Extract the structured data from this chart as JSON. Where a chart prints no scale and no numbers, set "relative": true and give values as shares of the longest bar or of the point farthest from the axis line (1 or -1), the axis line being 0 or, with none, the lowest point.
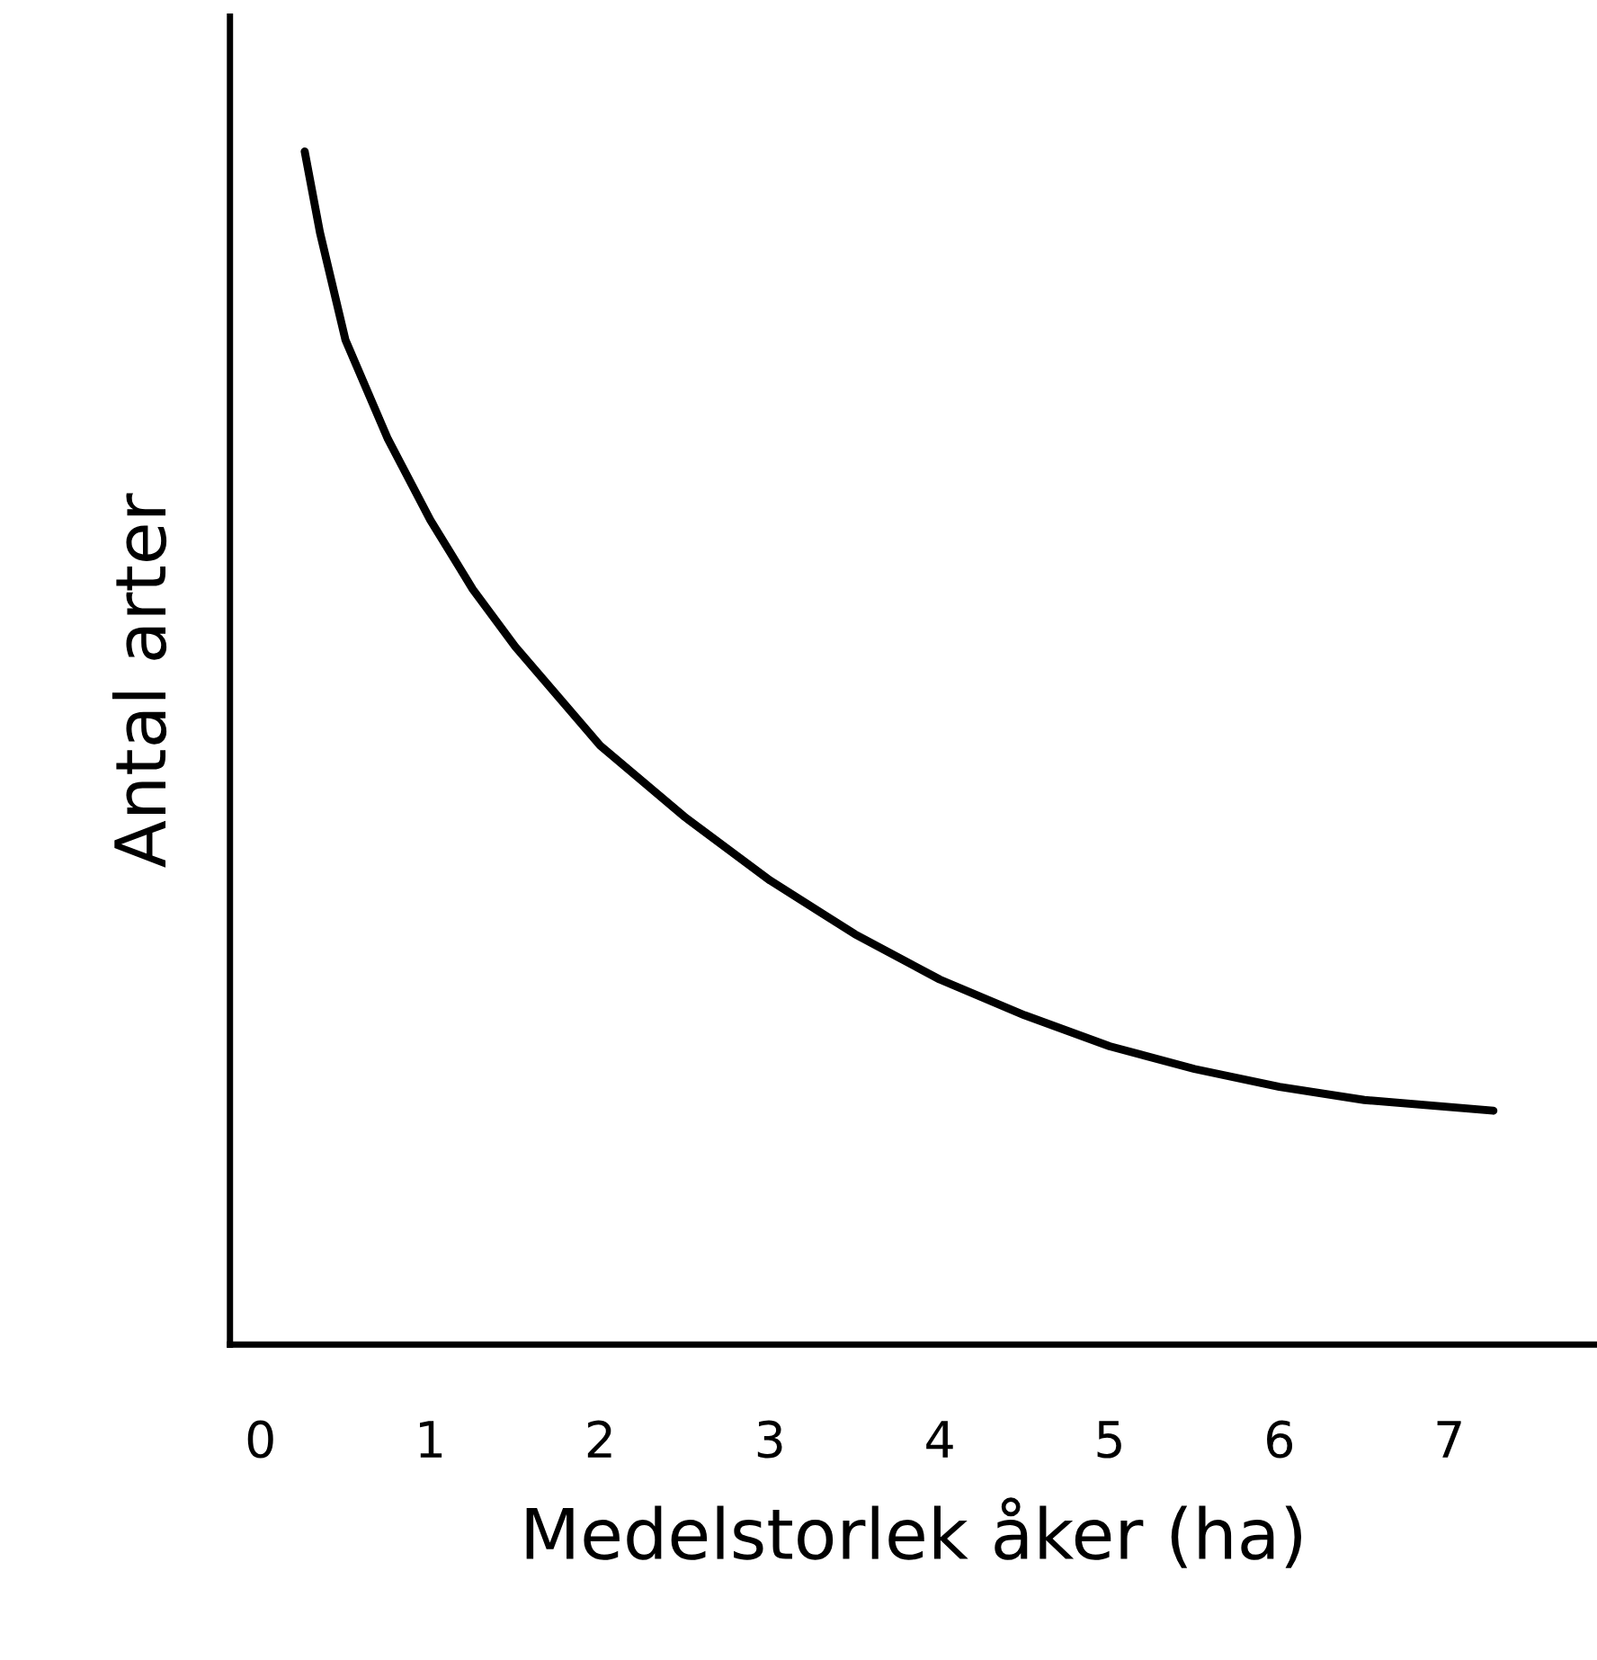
{
  "chart_data": {
    "type": "line",
    "xlabel": "Medelstorlek åker (ha)",
    "ylabel": "Antal arter",
    "relative": true,
    "xlim": [
      -0.18,
      7.87
    ],
    "xticks": [
      0,
      1,
      2,
      3,
      4,
      5,
      6,
      7
    ],
    "grid": false,
    "marker": "none",
    "line_style": "solid",
    "series": [
      {
        "color": "#000000",
        "x": [
          0.26,
          0.35,
          0.5,
          0.75,
          1,
          1.25,
          1.5,
          2,
          2.5,
          3,
          3.5,
          4,
          4.5,
          5,
          5.5,
          6,
          6.5,
          7.26
        ],
        "values": [
          1.0,
          0.932,
          0.842,
          0.759,
          0.691,
          0.633,
          0.585,
          0.502,
          0.442,
          0.389,
          0.344,
          0.306,
          0.276,
          0.25,
          0.231,
          0.216,
          0.205,
          0.196
        ]
      }
    ]
  }
}
